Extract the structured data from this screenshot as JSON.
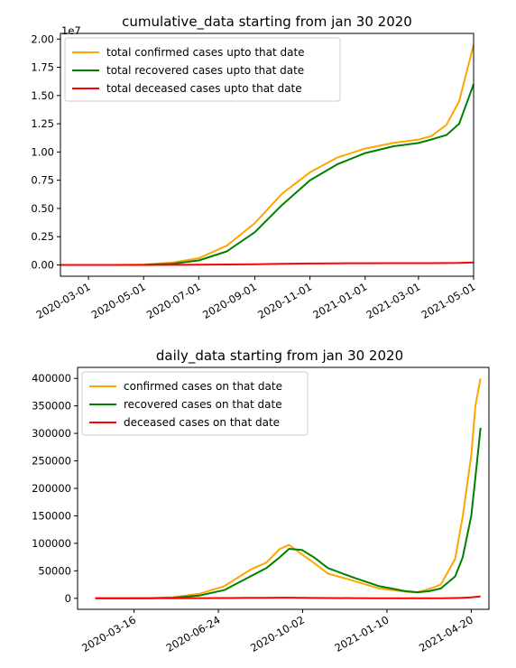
{
  "charts": {
    "top": {
      "title": "cumulative_data starting from jan 30 2020",
      "exponent": "1e7",
      "y_ticks": [
        "0.00",
        "0.25",
        "0.50",
        "0.75",
        "1.00",
        "1.25",
        "1.50",
        "1.75",
        "2.00"
      ],
      "x_ticks": [
        "2020-03-01",
        "2020-05-01",
        "2020-07-01",
        "2020-09-01",
        "2020-11-01",
        "2021-01-01",
        "2021-03-01",
        "2021-05-01"
      ],
      "legend": [
        "total confirmed cases upto that date",
        "total recovered cases upto that date",
        "total deceased cases upto that date"
      ]
    },
    "bottom": {
      "title": "daily_data starting from jan 30 2020",
      "y_ticks": [
        "0",
        "50000",
        "100000",
        "150000",
        "200000",
        "250000",
        "300000",
        "350000",
        "400000"
      ],
      "x_ticks": [
        "2020-03-16",
        "2020-06-24",
        "2020-10-02",
        "2021-01-10",
        "2021-04-20"
      ],
      "legend": [
        "confirmed cases on that date",
        "recovered cases on that date",
        "deceased cases on that date"
      ]
    }
  },
  "colors": {
    "confirmed": "#ffa500",
    "recovered": "#008000",
    "deceased": "#ff0000"
  },
  "chart_data": [
    {
      "type": "line",
      "title": "cumulative_data starting from jan 30 2020",
      "xlabel": "",
      "ylabel": "",
      "y_scale_note": "1e7",
      "xlim": [
        "2020-01-30",
        "2021-05-01"
      ],
      "ylim": [
        -0.1,
        2.05
      ],
      "grid": false,
      "legend_position": "upper-left",
      "x": [
        "2020-01-30",
        "2020-03-01",
        "2020-04-01",
        "2020-05-01",
        "2020-06-01",
        "2020-07-01",
        "2020-08-01",
        "2020-09-01",
        "2020-10-01",
        "2020-11-01",
        "2020-12-01",
        "2021-01-01",
        "2021-02-01",
        "2021-03-01",
        "2021-03-15",
        "2021-04-01",
        "2021-04-15",
        "2021-05-01"
      ],
      "series": [
        {
          "name": "total confirmed cases upto that date",
          "color": "#ffa500",
          "values": [
            0,
            0,
            0,
            0.004,
            0.02,
            0.06,
            0.17,
            0.37,
            0.63,
            0.82,
            0.95,
            1.03,
            1.08,
            1.11,
            1.14,
            1.24,
            1.45,
            1.95
          ]
        },
        {
          "name": "total recovered cases upto that date",
          "color": "#008000",
          "values": [
            0,
            0,
            0,
            0.001,
            0.01,
            0.04,
            0.12,
            0.29,
            0.53,
            0.75,
            0.89,
            0.99,
            1.05,
            1.08,
            1.11,
            1.15,
            1.25,
            1.6
          ]
        },
        {
          "name": "total deceased cases upto that date",
          "color": "#ff0000",
          "values": [
            0,
            0,
            0,
            0,
            0.0005,
            0.0015,
            0.004,
            0.0065,
            0.01,
            0.0125,
            0.014,
            0.015,
            0.0155,
            0.016,
            0.016,
            0.0165,
            0.0175,
            0.022
          ]
        }
      ]
    },
    {
      "type": "line",
      "title": "daily_data starting from jan 30 2020",
      "xlabel": "",
      "ylabel": "",
      "xlim": [
        "2020-01-09",
        "2021-05-11"
      ],
      "ylim": [
        -20000,
        420000
      ],
      "grid": false,
      "legend_position": "upper-left",
      "x": [
        "2020-01-30",
        "2020-03-01",
        "2020-04-01",
        "2020-05-01",
        "2020-06-01",
        "2020-07-01",
        "2020-08-01",
        "2020-08-20",
        "2020-09-05",
        "2020-09-16",
        "2020-10-01",
        "2020-10-15",
        "2020-11-01",
        "2020-12-01",
        "2021-01-01",
        "2021-02-01",
        "2021-02-15",
        "2021-03-01",
        "2021-03-15",
        "2021-04-01",
        "2021-04-10",
        "2021-04-20",
        "2021-04-25",
        "2021-05-01"
      ],
      "series": [
        {
          "name": "confirmed cases on that date",
          "color": "#ffa500",
          "values": [
            0,
            0,
            300,
            2000,
            8000,
            22000,
            52000,
            65000,
            90000,
            97000,
            80000,
            65000,
            45000,
            32000,
            18000,
            12000,
            11000,
            17000,
            25000,
            72000,
            150000,
            260000,
            350000,
            400000
          ]
        },
        {
          "name": "recovered cases on that date",
          "color": "#008000",
          "values": [
            0,
            0,
            50,
            900,
            5000,
            15000,
            40000,
            55000,
            75000,
            90000,
            88000,
            75000,
            55000,
            38000,
            22000,
            13000,
            11000,
            13000,
            18000,
            40000,
            75000,
            150000,
            220000,
            310000
          ]
        },
        {
          "name": "deceased cases on that date",
          "color": "#ff0000",
          "values": [
            0,
            0,
            20,
            100,
            300,
            500,
            800,
            1000,
            1100,
            1150,
            1000,
            700,
            500,
            400,
            250,
            100,
            100,
            110,
            150,
            500,
            900,
            1800,
            2600,
            3500
          ]
        }
      ]
    }
  ]
}
